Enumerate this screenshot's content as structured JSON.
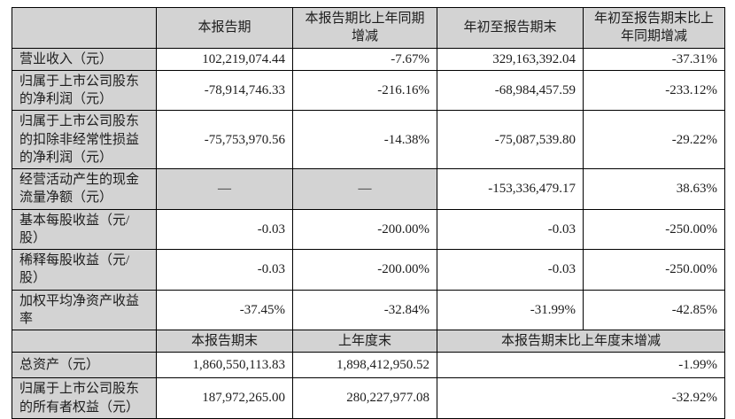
{
  "colors": {
    "header_bg": "#d3d3d3",
    "border": "#000000",
    "text": "#1c1c1c",
    "page_bg": "#ffffff"
  },
  "section1": {
    "headers": [
      "",
      "本报告期",
      "本报告期比上年同期增减",
      "年初至报告期末",
      "年初至报告期末比上年同期增减"
    ],
    "rows": [
      {
        "label": "营业收入（元）",
        "values": [
          "102,219,074.44",
          "-7.67%",
          "329,163,392.04",
          "-37.31%"
        ]
      },
      {
        "label": "归属于上市公司股东的净利润（元）",
        "values": [
          "-78,914,746.33",
          "-216.16%",
          "-68,984,457.59",
          "-233.12%"
        ]
      },
      {
        "label": "归属于上市公司股东的扣除非经常性损益的净利润（元）",
        "values": [
          "-75,753,970.56",
          "-14.38%",
          "-75,087,539.80",
          "-29.22%"
        ]
      },
      {
        "label": "经营活动产生的现金流量净额（元）",
        "values": [
          "—",
          "—",
          "-153,336,479.17",
          "38.63%"
        ]
      },
      {
        "label": "基本每股收益（元/股）",
        "values": [
          "-0.03",
          "-200.00%",
          "-0.03",
          "-250.00%"
        ]
      },
      {
        "label": "稀释每股收益（元/股）",
        "values": [
          "-0.03",
          "-200.00%",
          "-0.03",
          "-250.00%"
        ]
      },
      {
        "label": "加权平均净资产收益率",
        "values": [
          "-37.45%",
          "-32.84%",
          "-31.99%",
          "-42.85%"
        ]
      }
    ]
  },
  "section2": {
    "headers": [
      "",
      "本报告期末",
      "上年度末",
      "本报告期末比上年度末增减"
    ],
    "rows": [
      {
        "label": "总资产（元）",
        "values": [
          "1,860,550,113.83",
          "1,898,412,950.52",
          "-1.99%"
        ]
      },
      {
        "label": "归属于上市公司股东的所有者权益（元）",
        "values": [
          "187,972,265.00",
          "280,227,977.08",
          "-32.92%"
        ]
      }
    ]
  }
}
